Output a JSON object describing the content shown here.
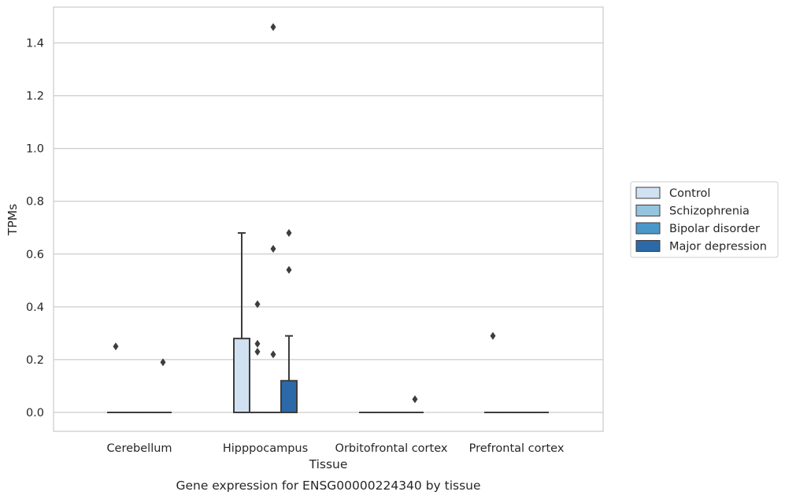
{
  "chart_data": {
    "type": "box",
    "title": "",
    "caption": "Gene expression for ENSG00000224340 by tissue",
    "xlabel": "Tissue",
    "ylabel": "TPMs",
    "ylim": [
      -0.07,
      1.54
    ],
    "yticks": [
      0.0,
      0.2,
      0.4,
      0.6,
      0.8,
      1.0,
      1.2,
      1.4
    ],
    "ytick_labels": [
      "0.0",
      "0.2",
      "0.4",
      "0.6",
      "0.8",
      "1.0",
      "1.2",
      "1.4"
    ],
    "categories": [
      "Cerebellum",
      "Hipppocampus",
      "Orbitofrontal cortex",
      "Prefrontal cortex"
    ],
    "grid": true,
    "legend_position": "right",
    "series": [
      {
        "name": "Control",
        "color": "#d0e1f2",
        "boxes": [
          {
            "q1": 0,
            "median": 0,
            "q3": 0,
            "whisker_low": 0,
            "whisker_high": 0,
            "outliers": [
              0.25
            ]
          },
          {
            "q1": 0,
            "median": 0,
            "q3": 0.28,
            "whisker_low": 0,
            "whisker_high": 0.68,
            "outliers": []
          },
          {
            "q1": 0,
            "median": 0,
            "q3": 0,
            "whisker_low": 0,
            "whisker_high": 0,
            "outliers": []
          },
          {
            "q1": 0,
            "median": 0,
            "q3": 0,
            "whisker_low": 0,
            "whisker_high": 0,
            "outliers": [
              0.29
            ]
          }
        ]
      },
      {
        "name": "Schizophrenia",
        "color": "#94c4df",
        "boxes": [
          {
            "q1": 0,
            "median": 0,
            "q3": 0,
            "whisker_low": 0,
            "whisker_high": 0,
            "outliers": []
          },
          {
            "q1": 0,
            "median": 0,
            "q3": 0,
            "whisker_low": 0,
            "whisker_high": 0,
            "outliers": [
              0.41,
              0.26,
              0.23
            ]
          },
          {
            "q1": 0,
            "median": 0,
            "q3": 0,
            "whisker_low": 0,
            "whisker_high": 0,
            "outliers": []
          },
          {
            "q1": 0,
            "median": 0,
            "q3": 0,
            "whisker_low": 0,
            "whisker_high": 0,
            "outliers": []
          }
        ]
      },
      {
        "name": "Bipolar disorder",
        "color": "#4a98c9",
        "boxes": [
          {
            "q1": 0,
            "median": 0,
            "q3": 0,
            "whisker_low": 0,
            "whisker_high": 0,
            "outliers": []
          },
          {
            "q1": 0,
            "median": 0,
            "q3": 0,
            "whisker_low": 0,
            "whisker_high": 0,
            "outliers": [
              1.46,
              0.62,
              0.22
            ]
          },
          {
            "q1": 0,
            "median": 0,
            "q3": 0,
            "whisker_low": 0,
            "whisker_high": 0,
            "outliers": []
          },
          {
            "q1": 0,
            "median": 0,
            "q3": 0,
            "whisker_low": 0,
            "whisker_high": 0,
            "outliers": []
          }
        ]
      },
      {
        "name": "Major depression",
        "color": "#2b69a8",
        "boxes": [
          {
            "q1": 0,
            "median": 0,
            "q3": 0,
            "whisker_low": 0,
            "whisker_high": 0,
            "outliers": [
              0.19
            ]
          },
          {
            "q1": 0,
            "median": 0,
            "q3": 0.12,
            "whisker_low": 0,
            "whisker_high": 0.29,
            "outliers": [
              0.68,
              0.54
            ]
          },
          {
            "q1": 0,
            "median": 0,
            "q3": 0,
            "whisker_low": 0,
            "whisker_high": 0,
            "outliers": [
              0.05
            ]
          },
          {
            "q1": 0,
            "median": 0,
            "q3": 0,
            "whisker_low": 0,
            "whisker_high": 0,
            "outliers": []
          }
        ]
      }
    ]
  }
}
